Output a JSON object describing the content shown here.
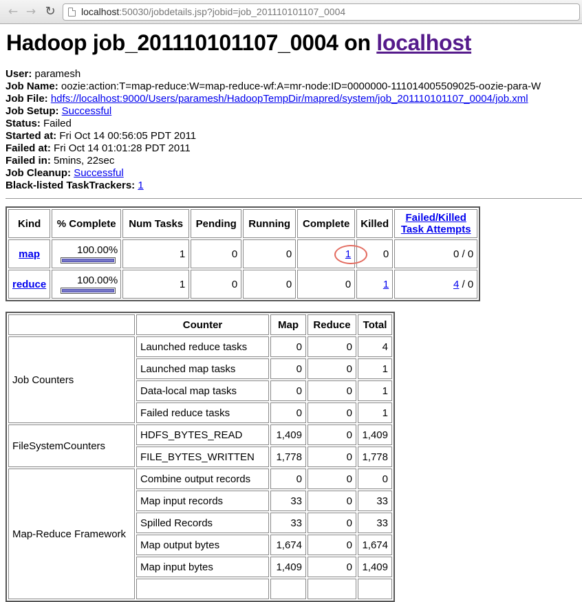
{
  "browser": {
    "url_host": "localhost",
    "url_rest": ":50030/jobdetails.jsp?jobid=job_201110101107_0004"
  },
  "heading": {
    "prefix": "Hadoop job_201110101107_0004 on ",
    "link": "localhost"
  },
  "info": {
    "user_label": "User:",
    "user": "paramesh",
    "job_name_label": "Job Name:",
    "job_name": "oozie:action:T=map-reduce:W=map-reduce-wf:A=mr-node:ID=0000000-111014005509025-oozie-para-W",
    "job_file_label": "Job File:",
    "job_file": "hdfs://localhost:9000/Users/paramesh/HadoopTempDir/mapred/system/job_201110101107_0004/job.xml",
    "job_setup_label": "Job Setup:",
    "job_setup": "Successful",
    "status_label": "Status:",
    "status": "Failed",
    "started_label": "Started at:",
    "started": "Fri Oct 14 00:56:05 PDT 2011",
    "failed_at_label": "Failed at:",
    "failed_at": "Fri Oct 14 01:01:28 PDT 2011",
    "failed_in_label": "Failed in:",
    "failed_in": "5mins, 22sec",
    "job_cleanup_label": "Job Cleanup:",
    "job_cleanup": "Successful",
    "blacklisted_label": "Black-listed TaskTrackers:",
    "blacklisted": "1"
  },
  "task_table": {
    "headers": {
      "kind": "Kind",
      "complete_pct": "% Complete",
      "num_tasks": "Num Tasks",
      "pending": "Pending",
      "running": "Running",
      "complete": "Complete",
      "killed": "Killed",
      "failed_killed_1": "Failed/Killed",
      "failed_killed_2": "Task Attempts"
    },
    "rows": [
      {
        "kind": "map",
        "pct": "100.00%",
        "progress": 1.0,
        "num_tasks": "1",
        "pending": "0",
        "running": "0",
        "complete": "1",
        "killed": "0",
        "failed": "0",
        "sep": " / ",
        "killed_attempts": "0"
      },
      {
        "kind": "reduce",
        "pct": "100.00%",
        "progress": 1.0,
        "num_tasks": "1",
        "pending": "0",
        "running": "0",
        "complete": "0",
        "killed": "1",
        "failed": "4",
        "sep": " / ",
        "killed_attempts": "0"
      }
    ]
  },
  "counter_table": {
    "headers": {
      "counter": "Counter",
      "map": "Map",
      "reduce": "Reduce",
      "total": "Total"
    },
    "groups": [
      {
        "name": "Job Counters"
      },
      {
        "name": "FileSystemCounters"
      },
      {
        "name": "Map-Reduce Framework"
      }
    ],
    "rows": [
      {
        "counter": "Launched reduce tasks",
        "map": "0",
        "reduce": "0",
        "total": "4"
      },
      {
        "counter": "Launched map tasks",
        "map": "0",
        "reduce": "0",
        "total": "1"
      },
      {
        "counter": "Data-local map tasks",
        "map": "0",
        "reduce": "0",
        "total": "1"
      },
      {
        "counter": "Failed reduce tasks",
        "map": "0",
        "reduce": "0",
        "total": "1"
      },
      {
        "counter": "HDFS_BYTES_READ",
        "map": "1,409",
        "reduce": "0",
        "total": "1,409"
      },
      {
        "counter": "FILE_BYTES_WRITTEN",
        "map": "1,778",
        "reduce": "0",
        "total": "1,778"
      },
      {
        "counter": "Combine output records",
        "map": "0",
        "reduce": "0",
        "total": "0"
      },
      {
        "counter": "Map input records",
        "map": "33",
        "reduce": "0",
        "total": "33"
      },
      {
        "counter": "Spilled Records",
        "map": "33",
        "reduce": "0",
        "total": "33"
      },
      {
        "counter": "Map output bytes",
        "map": "1,674",
        "reduce": "0",
        "total": "1,674"
      },
      {
        "counter": "Map input bytes",
        "map": "1,409",
        "reduce": "0",
        "total": "1,409"
      }
    ]
  },
  "colors": {
    "link": "#0000ee",
    "visited_link": "#551a8b",
    "progress_fill": "#7878c8",
    "annotation_circle": "#e36a5e"
  },
  "icons": [
    "back-arrow-icon",
    "forward-arrow-icon",
    "reload-icon",
    "page-icon"
  ]
}
